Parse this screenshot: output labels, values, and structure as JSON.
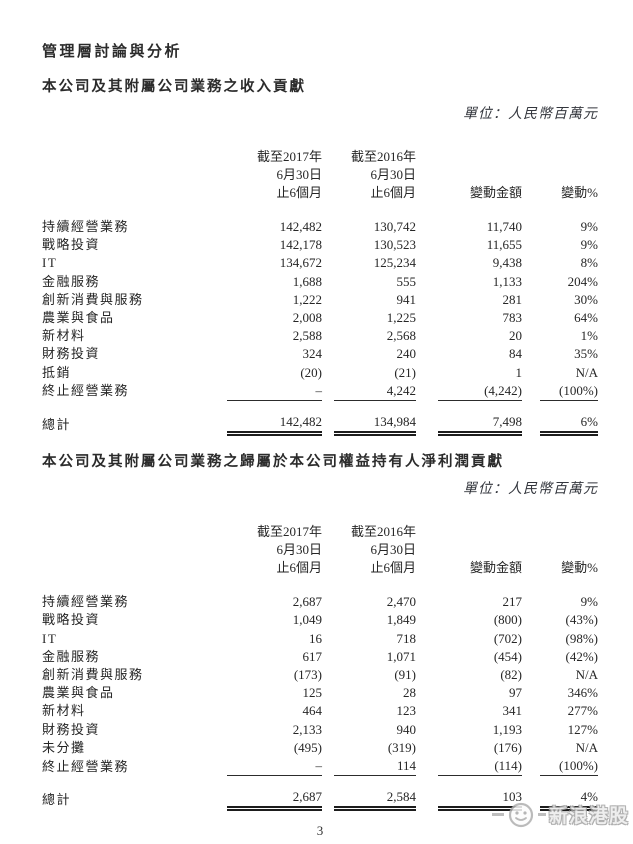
{
  "page": {
    "title": "管理層討論與分析",
    "page_number": "3",
    "watermark_text": "新浪港股",
    "accent_color": "#262626",
    "watermark_color": "#b3b3b3"
  },
  "sections": [
    {
      "heading": "本公司及其附屬公司業務之收入貢獻",
      "unit_label": "單位：人民幣百萬元",
      "table": {
        "columns": [
          {
            "lines": [
              "截至2017年",
              "6月30日",
              "止6個月"
            ],
            "bold": true
          },
          {
            "lines": [
              "截至2016年",
              "6月30日",
              "止6個月"
            ],
            "bold": false
          },
          {
            "lines": [
              "變動金額"
            ],
            "bold": false
          },
          {
            "lines": [
              "變動%"
            ],
            "bold": false
          }
        ],
        "rows": [
          {
            "label": "持續經營業務",
            "bold": true,
            "values": [
              "142,482",
              "130,742",
              "11,740",
              "9%"
            ]
          },
          {
            "label": "戰略投資",
            "bold": true,
            "values": [
              "142,178",
              "130,523",
              "11,655",
              "9%"
            ]
          },
          {
            "label": "IT",
            "bold": false,
            "values": [
              "134,672",
              "125,234",
              "9,438",
              "8%"
            ]
          },
          {
            "label": "金融服務",
            "bold": false,
            "values": [
              "1,688",
              "555",
              "1,133",
              "204%"
            ]
          },
          {
            "label": "創新消費與服務",
            "bold": false,
            "values": [
              "1,222",
              "941",
              "281",
              "30%"
            ]
          },
          {
            "label": "農業與食品",
            "bold": false,
            "values": [
              "2,008",
              "1,225",
              "783",
              "64%"
            ]
          },
          {
            "label": "新材料",
            "bold": false,
            "values": [
              "2,588",
              "2,568",
              "20",
              "1%"
            ]
          },
          {
            "label": "財務投資",
            "bold": true,
            "values": [
              "324",
              "240",
              "84",
              "35%"
            ]
          },
          {
            "label": "抵銷",
            "bold": false,
            "values": [
              "(20)",
              "(21)",
              "1",
              "N/A"
            ]
          },
          {
            "label": "終止經營業務",
            "bold": true,
            "values": [
              "–",
              "4,242",
              "(4,242)",
              "(100%)"
            ]
          }
        ],
        "total": {
          "label": "總計",
          "values": [
            "142,482",
            "134,984",
            "7,498",
            "6%"
          ]
        }
      }
    },
    {
      "heading": "本公司及其附屬公司業務之歸屬於本公司權益持有人淨利潤貢獻",
      "unit_label": "單位：人民幣百萬元",
      "table": {
        "columns": [
          {
            "lines": [
              "截至2017年",
              "6月30日",
              "止6個月"
            ],
            "bold": true
          },
          {
            "lines": [
              "截至2016年",
              "6月30日",
              "止6個月"
            ],
            "bold": false
          },
          {
            "lines": [
              "變動金額"
            ],
            "bold": false
          },
          {
            "lines": [
              "變動%"
            ],
            "bold": false
          }
        ],
        "rows": [
          {
            "label": "持續經營業務",
            "bold": true,
            "values": [
              "2,687",
              "2,470",
              "217",
              "9%"
            ]
          },
          {
            "label": "戰略投資",
            "bold": true,
            "values": [
              "1,049",
              "1,849",
              "(800)",
              "(43%)"
            ]
          },
          {
            "label": "IT",
            "bold": false,
            "values": [
              "16",
              "718",
              "(702)",
              "(98%)"
            ]
          },
          {
            "label": "金融服務",
            "bold": false,
            "values": [
              "617",
              "1,071",
              "(454)",
              "(42%)"
            ]
          },
          {
            "label": "創新消費與服務",
            "bold": false,
            "values": [
              "(173)",
              "(91)",
              "(82)",
              "N/A"
            ]
          },
          {
            "label": "農業與食品",
            "bold": false,
            "values": [
              "125",
              "28",
              "97",
              "346%"
            ]
          },
          {
            "label": "新材料",
            "bold": false,
            "values": [
              "464",
              "123",
              "341",
              "277%"
            ]
          },
          {
            "label": "財務投資",
            "bold": true,
            "values": [
              "2,133",
              "940",
              "1,193",
              "127%"
            ]
          },
          {
            "label": "未分攤",
            "bold": false,
            "values": [
              "(495)",
              "(319)",
              "(176)",
              "N/A"
            ]
          },
          {
            "label": "終止經營業務",
            "bold": true,
            "values": [
              "–",
              "114",
              "(114)",
              "(100%)"
            ]
          }
        ],
        "total": {
          "label": "總計",
          "values": [
            "2,687",
            "2,584",
            "103",
            "4%"
          ]
        }
      }
    }
  ]
}
